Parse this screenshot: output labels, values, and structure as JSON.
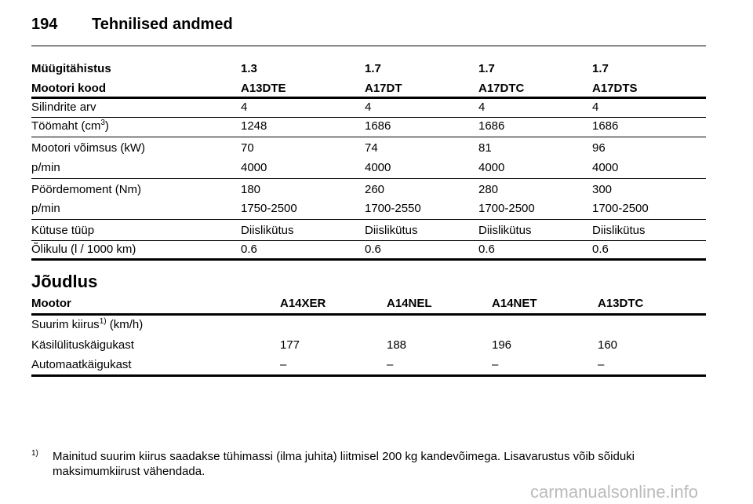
{
  "header": {
    "page": "194",
    "title": "Tehnilised andmed"
  },
  "table1": {
    "header": [
      [
        "Müügitähistus",
        "1.3",
        "1.7",
        "1.7",
        "1.7"
      ],
      [
        "Mootori kood",
        "A13DTE",
        "A17DT",
        "A17DTC",
        "A17DTS"
      ]
    ],
    "rows": [
      [
        "Silindrite arv",
        "4",
        "4",
        "4",
        "4"
      ],
      [
        {
          "text": "Töömaht (cm",
          "sup": "3",
          "after": ")"
        },
        "1248",
        "1686",
        "1686",
        "1686"
      ],
      [
        "Mootori võimsus (kW)",
        "70",
        "74",
        "81",
        "96"
      ],
      [
        "p/min",
        "4000",
        "4000",
        "4000",
        "4000"
      ],
      [
        "Pöördemoment (Nm)",
        "180",
        "260",
        "280",
        "300"
      ],
      [
        "p/min",
        "1750-2500",
        "1700-2550",
        "1700-2500",
        "1700-2500"
      ],
      [
        "Kütuse tüüp",
        "Diislikütus",
        "Diislikütus",
        "Diislikütus",
        "Diislikütus"
      ],
      [
        "Õlikulu (l / 1000 km)",
        "0.6",
        "0.6",
        "0.6",
        "0.6"
      ]
    ]
  },
  "section": "Jõudlus",
  "table2": {
    "header": [
      "Mootor",
      "A14XER",
      "A14NEL",
      "A14NET",
      "A13DTC"
    ],
    "rows": [
      [
        {
          "text": "Suurim kiirus",
          "sup": "1)",
          "after": " (km/h)"
        }
      ],
      [
        "Käsilülituskäigukast",
        "177",
        "188",
        "196",
        "160"
      ],
      [
        "Automaatkäigukast",
        "–",
        "–",
        "–",
        "–"
      ]
    ]
  },
  "footnote": {
    "mark": "1)",
    "text": "Mainitud suurim kiirus saadakse tühimassi (ilma juhita) liitmisel 200 kg kandevõimega. Lisavarustus võib sõiduki maksimumkiirust vähendada."
  },
  "watermark": "carmanualsonline.info"
}
